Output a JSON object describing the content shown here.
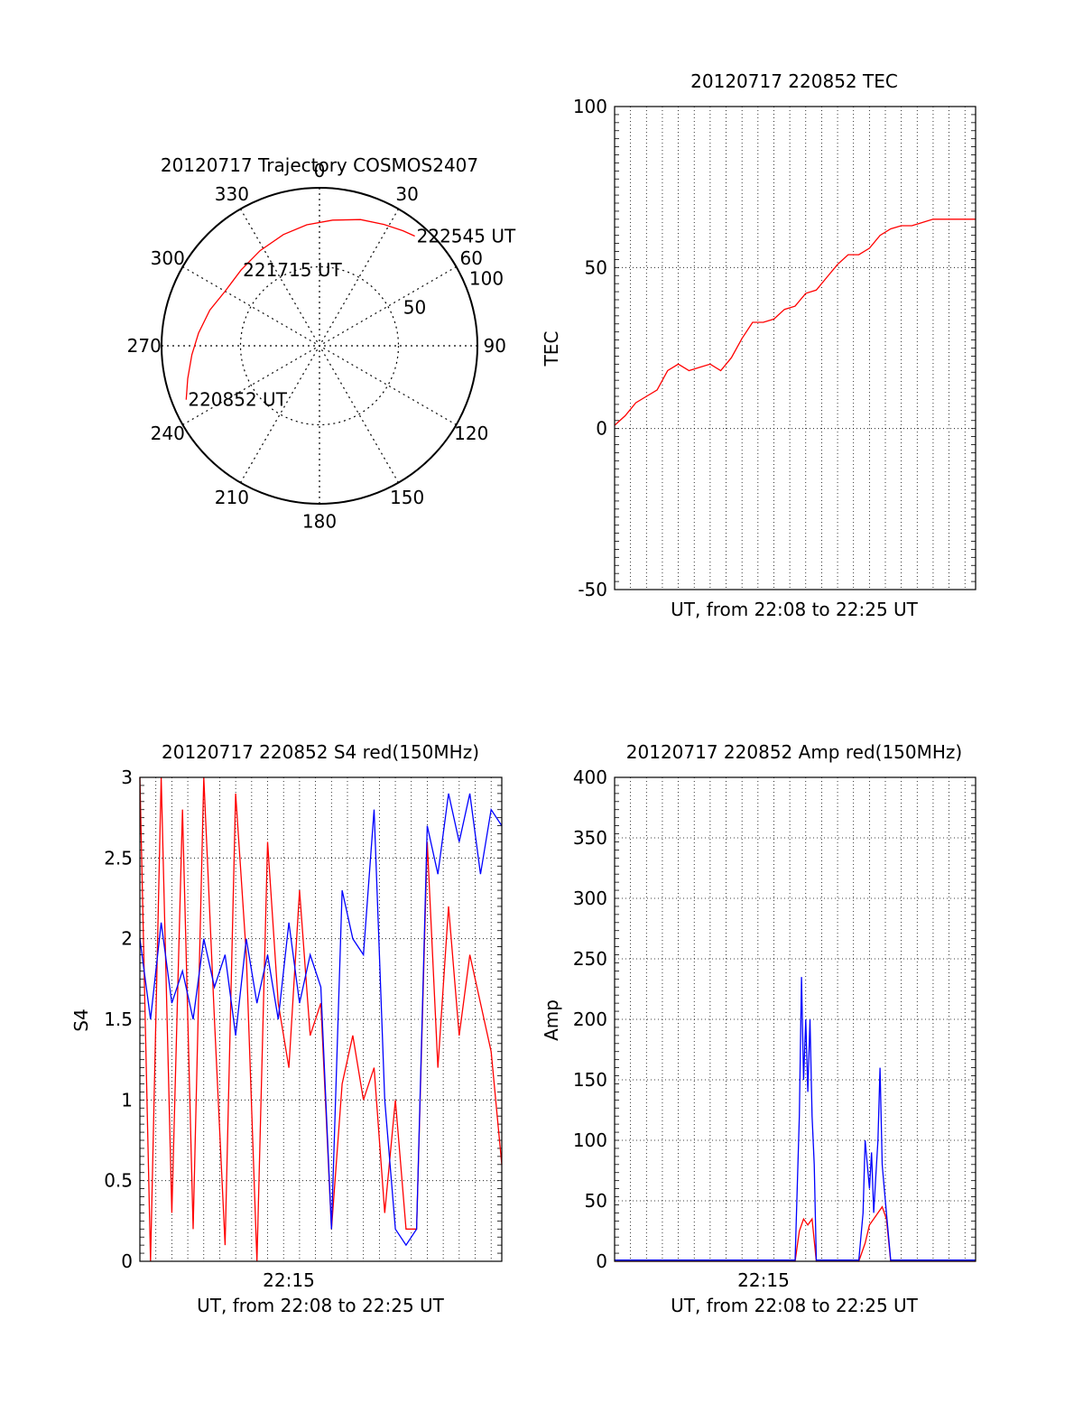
{
  "colors": {
    "red": "#ff0000",
    "blue": "#0000ff",
    "frame": "#000000",
    "grid": "#000000"
  },
  "chart_data": [
    {
      "type": "polar",
      "title": "20120717 Trajectory COSMOS2407",
      "angle_labels": [
        "0",
        "30",
        "60",
        "90",
        "120",
        "150",
        "180",
        "210",
        "240",
        "270",
        "300",
        "330"
      ],
      "radius_labels": [
        "50",
        "100"
      ],
      "r_max": 100,
      "series": [
        {
          "color": "red",
          "points": [
            {
              "az": 248,
              "el_r": 91
            },
            {
              "az": 256,
              "el_r": 86
            },
            {
              "az": 266,
              "el_r": 81
            },
            {
              "az": 276,
              "el_r": 77
            },
            {
              "az": 288,
              "el_r": 73
            },
            {
              "az": 300,
              "el_r": 69
            },
            {
              "az": 314,
              "el_r": 69
            },
            {
              "az": 328,
              "el_r": 71
            },
            {
              "az": 342,
              "el_r": 74
            },
            {
              "az": 354,
              "el_r": 77
            },
            {
              "az": 6,
              "el_r": 80
            },
            {
              "az": 18,
              "el_r": 84
            },
            {
              "az": 28,
              "el_r": 87
            },
            {
              "az": 36,
              "el_r": 90
            },
            {
              "az": 41,
              "el_r": 92
            }
          ]
        }
      ],
      "annotations": [
        {
          "text": "220852 UT",
          "az": 248,
          "el_r": 91
        },
        {
          "text": "221715 UT",
          "az": 314,
          "el_r": 69
        },
        {
          "text": "222545 UT",
          "az": 41,
          "el_r": 92
        }
      ]
    },
    {
      "type": "line",
      "title": "20120717 220852 TEC",
      "xlabel": "UT, from 22:08 to 22:25 UT",
      "ylabel": "TEC",
      "ylim": [
        -50,
        100
      ],
      "yticks": [
        "-50",
        "0",
        "50",
        "100"
      ],
      "xlim": [
        0,
        17
      ],
      "grid": true,
      "series": [
        {
          "color": "red",
          "x": [
            0,
            0.5,
            1,
            1.5,
            2,
            2.5,
            3,
            3.5,
            4,
            4.5,
            5,
            5.5,
            6,
            6.5,
            7,
            7.5,
            8,
            8.5,
            9,
            9.5,
            10,
            10.5,
            11,
            11.5,
            12,
            12.5,
            13,
            13.5,
            14,
            14.5,
            15,
            15.5,
            16,
            16.5,
            17
          ],
          "y": [
            1,
            4,
            8,
            10,
            12,
            18,
            20,
            18,
            19,
            20,
            18,
            22,
            28,
            33,
            33,
            34,
            37,
            38,
            42,
            43,
            47,
            51,
            54,
            54,
            56,
            60,
            62,
            63,
            63,
            64,
            65,
            65,
            65,
            65,
            65
          ]
        }
      ]
    },
    {
      "type": "line",
      "title": "20120717 220852 S4 red(150MHz)",
      "xlabel": "UT, from 22:08 to 22:25 UT",
      "ylabel": "S4",
      "ylim": [
        0,
        3
      ],
      "yticks": [
        "0",
        "0.5",
        "1",
        "1.5",
        "2",
        "2.5",
        "3"
      ],
      "xtick_label": "22:15",
      "xlim": [
        0,
        17
      ],
      "grid": true,
      "series": [
        {
          "color": "red",
          "x": [
            0,
            0.5,
            1,
            1.5,
            2,
            2.5,
            3,
            3.5,
            4,
            4.5,
            5,
            5.5,
            6,
            6.5,
            7,
            7.5,
            8,
            8.5,
            9,
            9.5,
            10,
            10.5,
            11,
            11.5,
            12,
            12.5,
            13,
            13.5,
            14,
            14.5,
            15,
            15.5,
            16,
            16.5,
            17
          ],
          "y": [
            3.0,
            0.0,
            3.0,
            0.3,
            2.8,
            0.2,
            3.0,
            1.5,
            0.1,
            2.9,
            1.9,
            0.0,
            2.6,
            1.6,
            1.2,
            2.3,
            1.4,
            1.6,
            0.2,
            1.1,
            1.4,
            1.0,
            1.2,
            0.3,
            1.0,
            0.2,
            0.2,
            2.6,
            1.2,
            2.2,
            1.4,
            1.9,
            1.6,
            1.3,
            0.6
          ]
        },
        {
          "color": "blue",
          "x": [
            0,
            0.5,
            1,
            1.5,
            2,
            2.5,
            3,
            3.5,
            4,
            4.5,
            5,
            5.5,
            6,
            6.5,
            7,
            7.5,
            8,
            8.5,
            9,
            9.5,
            10,
            10.5,
            11,
            11.5,
            12,
            12.5,
            13,
            13.5,
            14,
            14.5,
            15,
            15.5,
            16,
            16.5,
            17
          ],
          "y": [
            2.0,
            1.5,
            2.1,
            1.6,
            1.8,
            1.5,
            2.0,
            1.7,
            1.9,
            1.4,
            2.0,
            1.6,
            1.9,
            1.5,
            2.1,
            1.6,
            1.9,
            1.7,
            0.2,
            2.3,
            2.0,
            1.9,
            2.8,
            1.0,
            0.2,
            0.1,
            0.2,
            2.7,
            2.4,
            2.9,
            2.6,
            2.9,
            2.4,
            2.8,
            2.7
          ]
        }
      ]
    },
    {
      "type": "line",
      "title": "20120717 220852 Amp red(150MHz)",
      "xlabel": "UT, from 22:08 to 22:25 UT",
      "ylabel": "Amp",
      "ylim": [
        0,
        400
      ],
      "yticks": [
        "0",
        "50",
        "100",
        "150",
        "200",
        "250",
        "300",
        "350",
        "400"
      ],
      "xtick_label": "22:15",
      "xlim": [
        0,
        17
      ],
      "grid": true,
      "series": [
        {
          "color": "red",
          "x": [
            0,
            8.5,
            8.7,
            8.9,
            9.1,
            9.3,
            9.5,
            11.5,
            11.8,
            12.0,
            12.2,
            12.4,
            12.6,
            12.8,
            13.0,
            17
          ],
          "y": [
            0,
            0,
            25,
            35,
            30,
            35,
            0,
            0,
            15,
            30,
            35,
            40,
            45,
            35,
            0,
            0
          ]
        },
        {
          "color": "blue",
          "x": [
            0,
            8.5,
            8.7,
            8.8,
            8.9,
            9.0,
            9.1,
            9.2,
            9.3,
            9.4,
            9.5,
            11.5,
            11.7,
            11.8,
            11.9,
            12.0,
            12.1,
            12.2,
            12.3,
            12.4,
            12.5,
            12.6,
            12.7,
            12.8,
            13.0,
            17
          ],
          "y": [
            1,
            1,
            120,
            235,
            150,
            200,
            140,
            200,
            120,
            80,
            1,
            1,
            40,
            100,
            80,
            60,
            90,
            40,
            70,
            100,
            160,
            80,
            60,
            40,
            1,
            1
          ]
        }
      ]
    }
  ]
}
